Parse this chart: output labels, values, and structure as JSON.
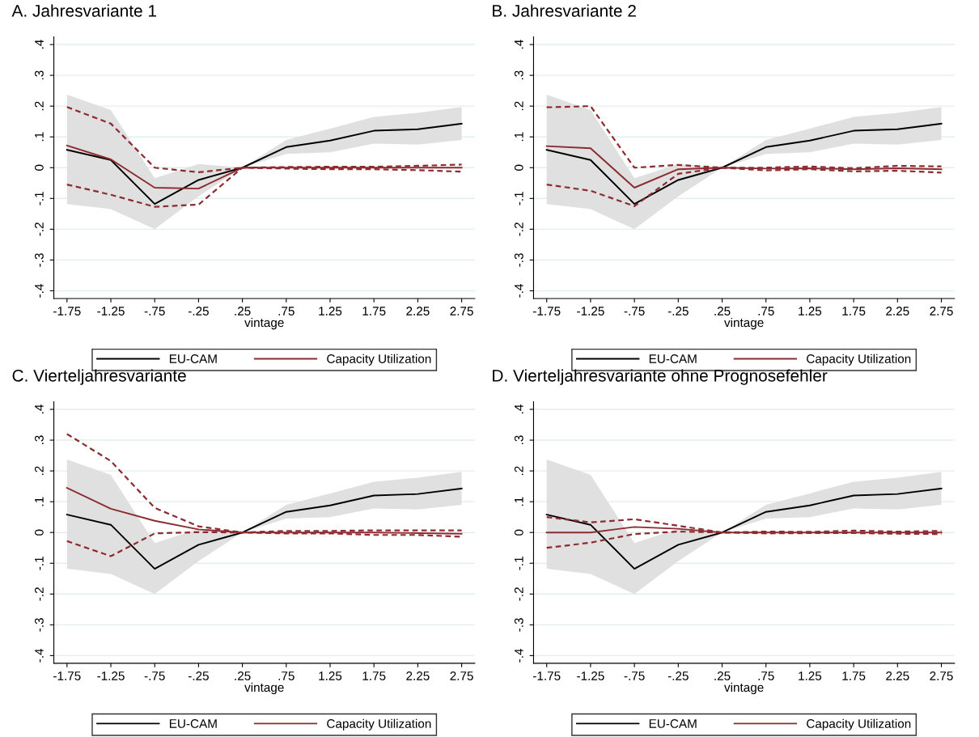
{
  "chart_data": [
    {
      "type": "line",
      "title": "A. Jahresvariante 1",
      "xlabel": "vintage",
      "x": [
        -1.75,
        -1.25,
        -0.75,
        -0.25,
        0.25,
        0.75,
        1.25,
        1.75,
        2.25,
        2.75
      ],
      "series": [
        {
          "name": "EU-CAM",
          "color": "#000000",
          "values": [
            0.058,
            0.025,
            -0.118,
            -0.04,
            0,
            0.067,
            0.088,
            0.12,
            0.125,
            0.143
          ],
          "lower": [
            -0.118,
            -0.135,
            -0.2,
            -0.093,
            0,
            0.045,
            0.05,
            0.078,
            0.075,
            0.09
          ],
          "upper": [
            0.237,
            0.187,
            -0.034,
            0.012,
            0,
            0.09,
            0.127,
            0.165,
            0.178,
            0.197
          ]
        },
        {
          "name": "Capacity Utilization",
          "color": "#8c2b30",
          "values": [
            0.072,
            0.027,
            -0.065,
            -0.068,
            0,
            0,
            0,
            0,
            0,
            0
          ]
        },
        {
          "color": "#8c2b30",
          "line_style": "dashed",
          "values": [
            0.197,
            0.143,
            0,
            -0.015,
            0,
            0.002,
            0.003,
            0.003,
            0.006,
            0.01
          ]
        },
        {
          "color": "#8c2b30",
          "line_style": "dashed",
          "values": [
            -0.055,
            -0.088,
            -0.127,
            -0.12,
            0,
            -0.003,
            -0.005,
            -0.005,
            -0.008,
            -0.013
          ]
        }
      ],
      "xlim": [
        -1.9,
        2.9
      ],
      "xticks": [
        {
          "value": -1.75,
          "label": "-1.75"
        },
        {
          "value": -1.25,
          "label": "-1.25"
        },
        {
          "value": -0.75,
          "label": "-.75"
        },
        {
          "value": -0.25,
          "label": "-.25"
        },
        {
          "value": 0.25,
          "label": ".25"
        },
        {
          "value": 0.75,
          "label": ".75"
        },
        {
          "value": 1.25,
          "label": "1.25"
        },
        {
          "value": 1.75,
          "label": "1.75"
        },
        {
          "value": 2.25,
          "label": "2.25"
        },
        {
          "value": 2.75,
          "label": "2.75"
        }
      ],
      "ylim": [
        -0.425,
        0.425
      ],
      "yticks": [
        {
          "value": -0.4,
          "label": "-.4"
        },
        {
          "value": -0.3,
          "label": "-.3"
        },
        {
          "value": -0.2,
          "label": "-.2"
        },
        {
          "value": -0.1,
          "label": "-.1"
        },
        0,
        {
          "value": 0.1,
          "label": ".1"
        },
        {
          "value": 0.2,
          "label": ".2"
        },
        {
          "value": 0.3,
          "label": ".3"
        },
        {
          "value": 0.4,
          "label": ".4"
        }
      ],
      "grid": "y",
      "legend": "bottom",
      "marker": "none",
      "line_style": "solid"
    },
    {
      "type": "line",
      "title": "B. Jahresvariante 2",
      "xlabel": "vintage",
      "x": [
        -1.75,
        -1.25,
        -0.75,
        -0.25,
        0.25,
        0.75,
        1.25,
        1.75,
        2.25,
        2.75
      ],
      "series": [
        {
          "name": "EU-CAM",
          "color": "#000000",
          "values": [
            0.058,
            0.025,
            -0.118,
            -0.04,
            0,
            0.067,
            0.088,
            0.12,
            0.125,
            0.143
          ],
          "lower": [
            -0.118,
            -0.135,
            -0.2,
            -0.093,
            0,
            0.045,
            0.05,
            0.078,
            0.075,
            0.09
          ],
          "upper": [
            0.237,
            0.187,
            -0.034,
            0.012,
            0,
            0.09,
            0.127,
            0.165,
            0.178,
            0.197
          ]
        },
        {
          "name": "Capacity Utilization",
          "color": "#8c2b30",
          "values": [
            0.07,
            0.063,
            -0.065,
            -0.005,
            0,
            -0.003,
            -0.002,
            -0.005,
            -0.002,
            -0.005
          ]
        },
        {
          "color": "#8c2b30",
          "line_style": "dashed",
          "values": [
            0.196,
            0.2,
            0,
            0.009,
            0,
            0,
            0.004,
            -0.002,
            0.006,
            0.004
          ]
        },
        {
          "color": "#8c2b30",
          "line_style": "dashed",
          "values": [
            -0.055,
            -0.075,
            -0.125,
            -0.02,
            0,
            -0.009,
            -0.005,
            -0.012,
            -0.01,
            -0.016
          ]
        }
      ],
      "xlim": [
        -1.9,
        2.9
      ],
      "xticks": [
        {
          "value": -1.75,
          "label": "-1.75"
        },
        {
          "value": -1.25,
          "label": "-1.25"
        },
        {
          "value": -0.75,
          "label": "-.75"
        },
        {
          "value": -0.25,
          "label": "-.25"
        },
        {
          "value": 0.25,
          "label": ".25"
        },
        {
          "value": 0.75,
          "label": ".75"
        },
        {
          "value": 1.25,
          "label": "1.25"
        },
        {
          "value": 1.75,
          "label": "1.75"
        },
        {
          "value": 2.25,
          "label": "2.25"
        },
        {
          "value": 2.75,
          "label": "2.75"
        }
      ],
      "ylim": [
        -0.425,
        0.425
      ],
      "yticks": [
        {
          "value": -0.4,
          "label": "-.4"
        },
        {
          "value": -0.3,
          "label": "-.3"
        },
        {
          "value": -0.2,
          "label": "-.2"
        },
        {
          "value": -0.1,
          "label": "-.1"
        },
        0,
        {
          "value": 0.1,
          "label": ".1"
        },
        {
          "value": 0.2,
          "label": ".2"
        },
        {
          "value": 0.3,
          "label": ".3"
        },
        {
          "value": 0.4,
          "label": ".4"
        }
      ],
      "grid": "y",
      "legend": "bottom",
      "marker": "none",
      "line_style": "solid"
    },
    {
      "type": "line",
      "title": "C. Vierteljahresvariante",
      "xlabel": "vintage",
      "x": [
        -1.75,
        -1.25,
        -0.75,
        -0.25,
        0.25,
        0.75,
        1.25,
        1.75,
        2.25,
        2.75
      ],
      "series": [
        {
          "name": "EU-CAM",
          "color": "#000000",
          "values": [
            0.058,
            0.025,
            -0.118,
            -0.04,
            0,
            0.067,
            0.088,
            0.12,
            0.125,
            0.143
          ],
          "lower": [
            -0.118,
            -0.135,
            -0.2,
            -0.093,
            0,
            0.045,
            0.05,
            0.078,
            0.075,
            0.09
          ],
          "upper": [
            0.237,
            0.187,
            -0.034,
            0.012,
            0,
            0.09,
            0.127,
            0.165,
            0.178,
            0.197
          ]
        },
        {
          "name": "Capacity Utilization",
          "color": "#8c2b30",
          "values": [
            0.145,
            0.077,
            0.038,
            0.01,
            0,
            0,
            0,
            0,
            -0.002,
            -0.004
          ]
        },
        {
          "color": "#8c2b30",
          "line_style": "dashed",
          "values": [
            0.32,
            0.232,
            0.08,
            0.02,
            0,
            0.005,
            0.005,
            0.007,
            0.007,
            0.007
          ]
        },
        {
          "color": "#8c2b30",
          "line_style": "dashed",
          "values": [
            -0.028,
            -0.077,
            -0.003,
            0.001,
            0,
            -0.003,
            -0.003,
            -0.008,
            -0.008,
            -0.014
          ]
        }
      ],
      "xlim": [
        -1.9,
        2.9
      ],
      "xticks": [
        {
          "value": -1.75,
          "label": "-1.75"
        },
        {
          "value": -1.25,
          "label": "-1.25"
        },
        {
          "value": -0.75,
          "label": "-.75"
        },
        {
          "value": -0.25,
          "label": "-.25"
        },
        {
          "value": 0.25,
          "label": ".25"
        },
        {
          "value": 0.75,
          "label": ".75"
        },
        {
          "value": 1.25,
          "label": "1.25"
        },
        {
          "value": 1.75,
          "label": "1.75"
        },
        {
          "value": 2.25,
          "label": "2.25"
        },
        {
          "value": 2.75,
          "label": "2.75"
        }
      ],
      "ylim": [
        -0.425,
        0.425
      ],
      "yticks": [
        {
          "value": -0.4,
          "label": "-.4"
        },
        {
          "value": -0.3,
          "label": "-.3"
        },
        {
          "value": -0.2,
          "label": "-.2"
        },
        {
          "value": -0.1,
          "label": "-.1"
        },
        0,
        {
          "value": 0.1,
          "label": ".1"
        },
        {
          "value": 0.2,
          "label": ".2"
        },
        {
          "value": 0.3,
          "label": ".3"
        },
        {
          "value": 0.4,
          "label": ".4"
        }
      ],
      "grid": "y",
      "legend": "bottom",
      "marker": "none",
      "line_style": "solid"
    },
    {
      "type": "line",
      "title": "D. Vierteljahresvariante ohne Prognosefehler",
      "xlabel": "vintage",
      "x": [
        -1.75,
        -1.25,
        -0.75,
        -0.25,
        0.25,
        0.75,
        1.25,
        1.75,
        2.25,
        2.75
      ],
      "series": [
        {
          "name": "EU-CAM",
          "color": "#000000",
          "values": [
            0.058,
            0.025,
            -0.118,
            -0.04,
            0,
            0.067,
            0.088,
            0.12,
            0.125,
            0.143
          ],
          "lower": [
            -0.118,
            -0.135,
            -0.2,
            -0.093,
            0,
            0.045,
            0.05,
            0.078,
            0.075,
            0.09
          ],
          "upper": [
            0.237,
            0.187,
            -0.034,
            0.012,
            0,
            0.09,
            0.127,
            0.165,
            0.178,
            0.197
          ]
        },
        {
          "name": "Capacity Utilization",
          "color": "#8c2b30",
          "values": [
            0,
            0,
            0.018,
            0.012,
            0,
            0,
            0,
            0,
            0,
            0
          ]
        },
        {
          "color": "#8c2b30",
          "line_style": "dashed",
          "values": [
            0.05,
            0.033,
            0.043,
            0.022,
            0,
            0.003,
            0.002,
            0.006,
            0.003,
            0.005
          ]
        },
        {
          "color": "#8c2b30",
          "line_style": "dashed",
          "values": [
            -0.05,
            -0.033,
            -0.005,
            0.003,
            0,
            -0.003,
            -0.002,
            -0.002,
            -0.004,
            -0.005
          ]
        }
      ],
      "xlim": [
        -1.9,
        2.9
      ],
      "xticks": [
        {
          "value": -1.75,
          "label": "-1.75"
        },
        {
          "value": -1.25,
          "label": "-1.25"
        },
        {
          "value": -0.75,
          "label": "-.75"
        },
        {
          "value": -0.25,
          "label": "-.25"
        },
        {
          "value": 0.25,
          "label": ".25"
        },
        {
          "value": 0.75,
          "label": ".75"
        },
        {
          "value": 1.25,
          "label": "1.25"
        },
        {
          "value": 1.75,
          "label": "1.75"
        },
        {
          "value": 2.25,
          "label": "2.25"
        },
        {
          "value": 2.75,
          "label": "2.75"
        }
      ],
      "ylim": [
        -0.425,
        0.425
      ],
      "yticks": [
        {
          "value": -0.4,
          "label": "-.4"
        },
        {
          "value": -0.3,
          "label": "-.3"
        },
        {
          "value": -0.2,
          "label": "-.2"
        },
        {
          "value": -0.1,
          "label": "-.1"
        },
        0,
        {
          "value": 0.1,
          "label": ".1"
        },
        {
          "value": 0.2,
          "label": ".2"
        },
        {
          "value": 0.3,
          "label": ".3"
        },
        {
          "value": 0.4,
          "label": ".4"
        }
      ],
      "grid": "y",
      "legend": "bottom",
      "marker": "none",
      "line_style": "solid"
    }
  ]
}
